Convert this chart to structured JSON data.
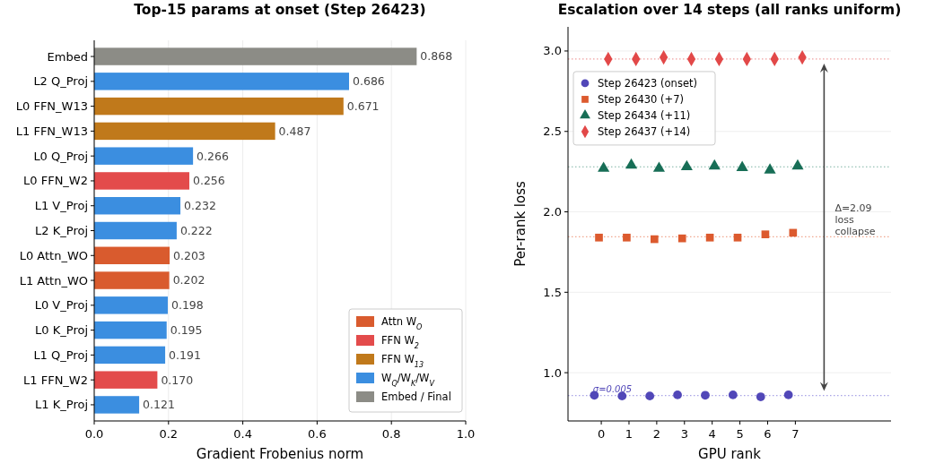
{
  "chart_data": [
    {
      "type": "bar",
      "orientation": "horizontal",
      "stacked": true,
      "title": "Top-15 params at onset (Step 26423)",
      "xlabel": "Gradient Frobenius norm",
      "categories": [
        "Embed",
        "L2 Q_Proj",
        "L0 FFN_W13",
        "L1 FFN_W13",
        "L0 Q_Proj",
        "L0 FFN_W2",
        "L1 V_Proj",
        "L2 K_Proj",
        "L0 Attn_WO",
        "L1 Attn_WO",
        "L0 V_Proj",
        "L0 K_Proj",
        "L1 Q_Proj",
        "L1 FFN_W2",
        "L1 K_Proj"
      ],
      "series": [
        {
          "name": "Attn W$_{O}$",
          "color": "#d95b2e",
          "values": [
            null,
            null,
            null,
            null,
            null,
            null,
            null,
            null,
            0.203,
            0.202,
            null,
            null,
            null,
            null,
            null
          ],
          "value_labels": [
            null,
            null,
            null,
            null,
            null,
            null,
            null,
            null,
            "0.203",
            "0.202",
            null,
            null,
            null,
            null,
            null
          ]
        },
        {
          "name": "FFN W$_{2}$",
          "color": "#e34b4b",
          "values": [
            null,
            null,
            null,
            null,
            null,
            0.256,
            null,
            null,
            null,
            null,
            null,
            null,
            null,
            0.17,
            null
          ],
          "value_labels": [
            null,
            null,
            null,
            null,
            null,
            "0.256",
            null,
            null,
            null,
            null,
            null,
            null,
            null,
            "0.170",
            null
          ]
        },
        {
          "name": "FFN W$_{13}$",
          "color": "#c0791b",
          "values": [
            null,
            null,
            0.671,
            0.487,
            null,
            null,
            null,
            null,
            null,
            null,
            null,
            null,
            null,
            null,
            null
          ],
          "value_labels": [
            null,
            null,
            "0.671",
            "0.487",
            null,
            null,
            null,
            null,
            null,
            null,
            null,
            null,
            null,
            null,
            null
          ]
        },
        {
          "name": "W$_{Q}$/W$_{K}$/W$_{V}$",
          "color": "#3b8ee0",
          "values": [
            null,
            0.686,
            null,
            null,
            0.266,
            null,
            0.232,
            0.222,
            null,
            null,
            0.198,
            0.195,
            0.191,
            null,
            0.121
          ],
          "value_labels": [
            null,
            "0.686",
            null,
            null,
            "0.266",
            null,
            "0.232",
            "0.222",
            null,
            null,
            "0.198",
            "0.195",
            "0.191",
            null,
            "0.121"
          ]
        },
        {
          "name": "Embed / Final",
          "color": "#8c8c86",
          "values": [
            0.868,
            null,
            null,
            null,
            null,
            null,
            null,
            null,
            null,
            null,
            null,
            null,
            null,
            null,
            null
          ],
          "value_labels": [
            "0.868",
            null,
            null,
            null,
            null,
            null,
            null,
            null,
            null,
            null,
            null,
            null,
            null,
            null,
            null
          ]
        }
      ],
      "xlim": [
        0,
        1
      ],
      "xticks": [
        {
          "value": 0,
          "label": "0.0"
        },
        0.2,
        0.4,
        0.6,
        0.8,
        {
          "value": 1,
          "label": "1.0"
        }
      ],
      "grid": "x",
      "legend": "bottom right"
    },
    {
      "type": "scatter",
      "title": "Escalation over 14 steps (all ranks uniform)",
      "xlabel": "GPU rank",
      "ylabel": "Per-rank loss",
      "xlim": [
        -1.2,
        10.45
      ],
      "xticks": [
        0,
        1,
        2,
        3,
        4,
        5,
        6,
        7
      ],
      "ylim": [
        0.7,
        3.15
      ],
      "yticks": [
        {
          "value": 1,
          "label": "1.0"
        },
        1.5,
        {
          "value": 2,
          "label": "2.0"
        },
        2.5,
        {
          "value": 3,
          "label": "3.0"
        }
      ],
      "grid": "y",
      "legend": "top left",
      "series": [
        {
          "name": "Step 26423 (onset)",
          "color": "#5147b8",
          "marker": "circle",
          "x": [
            -0.25,
            0.75,
            1.75,
            2.75,
            3.75,
            4.75,
            5.75,
            6.75
          ],
          "values": [
            0.86,
            0.855,
            0.855,
            0.862,
            0.86,
            0.862,
            0.85,
            0.862
          ]
        },
        {
          "name": "Step 26430 (+7)",
          "color": "#dc5a2e",
          "marker": "square",
          "x": [
            -0.083,
            0.917,
            1.917,
            2.917,
            3.917,
            4.917,
            5.917,
            6.917
          ],
          "values": [
            1.84,
            1.84,
            1.83,
            1.835,
            1.84,
            1.84,
            1.86,
            1.87
          ]
        },
        {
          "name": "Step 26434 (+11)",
          "color": "#176e56",
          "marker": "triangle",
          "x": [
            0.083,
            1.083,
            2.083,
            3.083,
            4.083,
            5.083,
            6.083,
            7.083
          ],
          "values": [
            2.27,
            2.29,
            2.27,
            2.28,
            2.285,
            2.275,
            2.26,
            2.285
          ]
        },
        {
          "name": "Step 26437 (+14)",
          "color": "#e24848",
          "marker": "diamond",
          "x": [
            0.25,
            1.25,
            2.25,
            3.25,
            4.25,
            5.25,
            6.25,
            7.25
          ],
          "values": [
            2.95,
            2.95,
            2.96,
            2.95,
            2.95,
            2.95,
            2.95,
            2.96
          ]
        }
      ],
      "ref_lines": [
        {
          "axis": "y",
          "value": 2.95,
          "color": "#f0a0a0",
          "line_style": "dotted"
        },
        {
          "axis": "y",
          "value": 2.28,
          "color": "#7fb3a5",
          "line_style": "dotted"
        },
        {
          "axis": "y",
          "value": 1.845,
          "color": "#f0a890",
          "line_style": "dotted"
        },
        {
          "axis": "y",
          "value": 0.858,
          "color": "#a9a3e6",
          "line_style": "dotted"
        }
      ],
      "annotations": [
        {
          "text": "σ=0.005",
          "x": -0.3,
          "y": 0.88
        },
        "Δ=2.09 loss collapse"
      ]
    }
  ]
}
